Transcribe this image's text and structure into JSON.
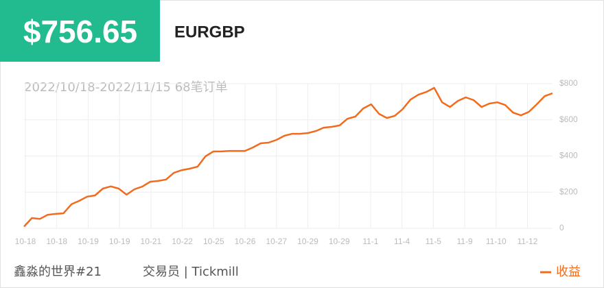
{
  "header": {
    "amount": "$756.65",
    "symbol": "EURGBP"
  },
  "chart_data": {
    "type": "line",
    "subtitle": "2022/10/18-2022/11/15 68笔订单",
    "x_tick_labels": [
      "10-18",
      "10-18",
      "10-19",
      "10-19",
      "10-21",
      "10-22",
      "10-25",
      "10-26",
      "10-27",
      "10-29",
      "10-29",
      "11-1",
      "11-4",
      "11-5",
      "11-9",
      "11-10",
      "11-12"
    ],
    "series": [
      {
        "name": "收益",
        "color": "#f26b1d",
        "values": [
          10,
          57,
          52,
          75,
          80,
          83,
          133,
          152,
          175,
          182,
          220,
          232,
          220,
          186,
          216,
          231,
          258,
          262,
          270,
          307,
          322,
          330,
          341,
          398,
          425,
          425,
          428,
          428,
          428,
          447,
          470,
          474,
          489,
          512,
          523,
          523,
          527,
          538,
          557,
          561,
          569,
          606,
          618,
          663,
          686,
          633,
          610,
          622,
          659,
          712,
          739,
          754,
          777,
          697,
          671,
          705,
          724,
          709,
          671,
          690,
          697,
          682,
          640,
          625,
          644,
          686,
          731,
          747
        ]
      }
    ],
    "ylim": [
      0,
      800
    ],
    "yticks": [
      {
        "value": 800,
        "label": "$800"
      },
      {
        "value": 600,
        "label": "$600"
      },
      {
        "value": 400,
        "label": "$400"
      },
      {
        "value": 200,
        "label": "$200"
      },
      0
    ],
    "grid": true
  },
  "footer": {
    "author": "鑫淼的世界#21",
    "role": "交易员 | Tickmill"
  }
}
